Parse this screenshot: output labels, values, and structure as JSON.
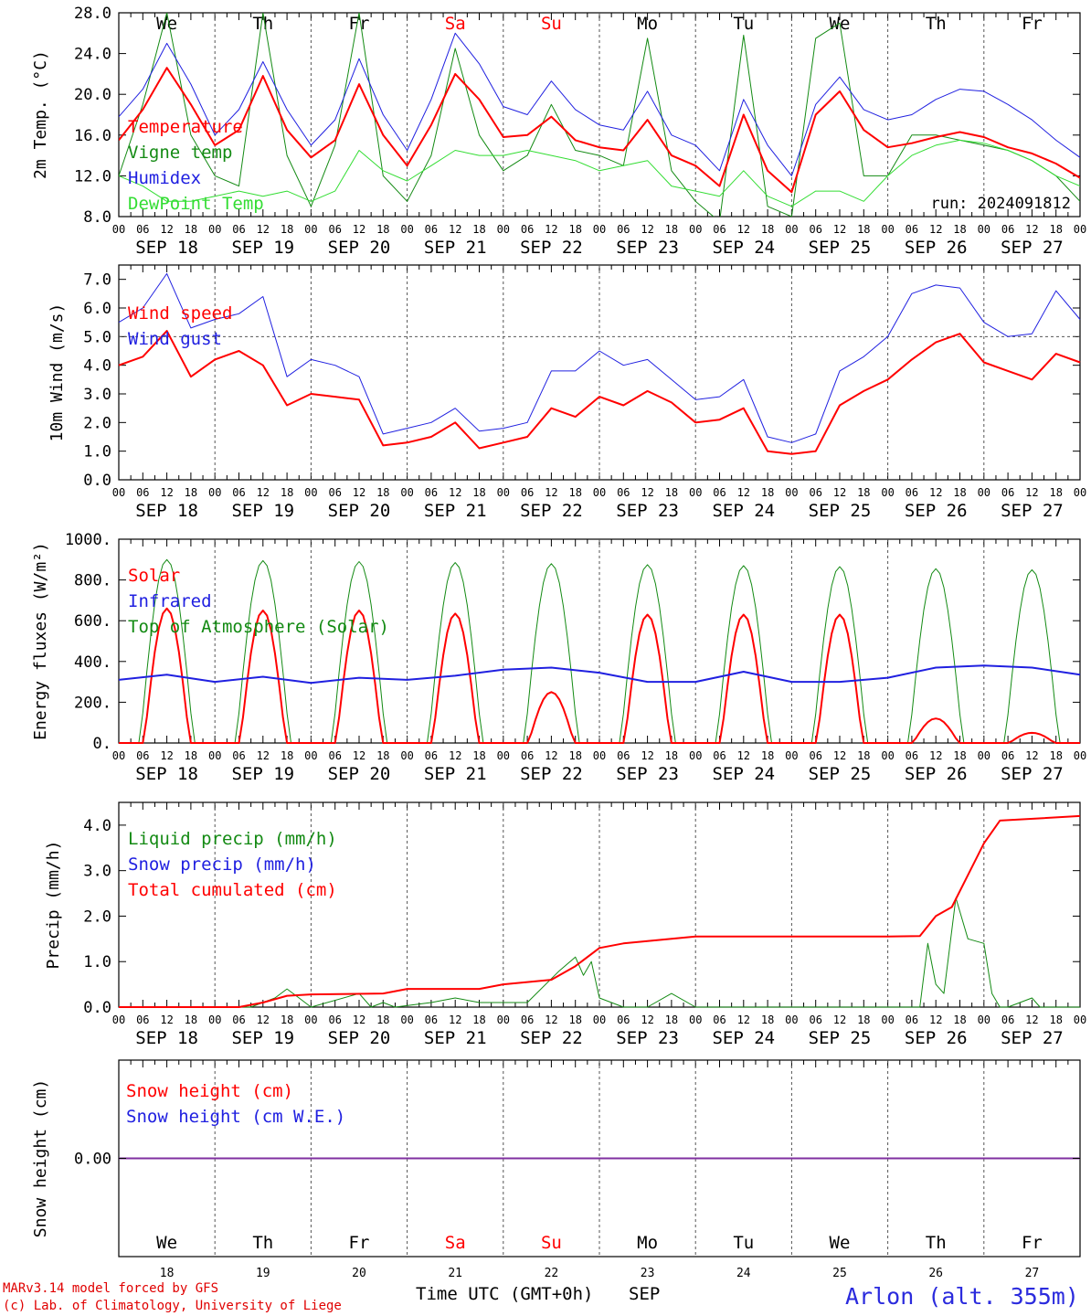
{
  "chart_data": [
    {
      "type": "line",
      "ylabel": "2m Temp. (°C)",
      "ylim": [
        8,
        28
      ],
      "yticks": [
        "8.0",
        "12.0",
        "16.0",
        "20.0",
        "24.0",
        "28.0"
      ],
      "annotation": "run: 2024091812",
      "x_hours": [
        0,
        6,
        12,
        18,
        24,
        30,
        36,
        42,
        48,
        54,
        60,
        66,
        72,
        78,
        84,
        90,
        96,
        102,
        108,
        114,
        120,
        126,
        132,
        138,
        144,
        150,
        156,
        162,
        168,
        174,
        180,
        186,
        192,
        198,
        204,
        210,
        216,
        222,
        228,
        234,
        240
      ],
      "series": [
        {
          "name": "Temperature",
          "color": "#ff0000",
          "width": 2,
          "values": [
            15.5,
            18.5,
            22.6,
            19.0,
            15.0,
            16.5,
            21.8,
            16.5,
            13.8,
            15.5,
            21.0,
            16.0,
            13.0,
            17.0,
            22.0,
            19.5,
            15.8,
            16.0,
            17.8,
            15.5,
            14.8,
            14.5,
            17.5,
            14.0,
            13.0,
            11.0,
            18.0,
            12.5,
            10.4,
            18.0,
            20.3,
            16.5,
            14.8,
            15.2,
            15.8,
            16.3,
            15.8,
            14.8,
            14.2,
            13.2,
            11.8
          ]
        },
        {
          "name": "Vigne temp",
          "color": "#138a13",
          "width": 1,
          "values": [
            12.0,
            19.0,
            28.0,
            16.0,
            12.0,
            11.0,
            28.0,
            14.0,
            9.0,
            15.0,
            28.0,
            12.0,
            9.5,
            14.0,
            24.5,
            16.0,
            12.5,
            14.0,
            19.0,
            14.5,
            14.0,
            13.0,
            25.5,
            12.5,
            9.5,
            7.5,
            25.8,
            9.0,
            8.0,
            25.5,
            27.0,
            12.0,
            12.0,
            16.0,
            16.0,
            15.5,
            15.0,
            14.5,
            13.5,
            12.0,
            9.5
          ]
        },
        {
          "name": "Humidex",
          "color": "#2020e0",
          "width": 1,
          "values": [
            17.8,
            20.5,
            25.0,
            21.0,
            16.0,
            18.5,
            23.2,
            18.5,
            15.0,
            17.5,
            23.5,
            18.0,
            14.5,
            19.5,
            26.0,
            23.0,
            18.8,
            18.0,
            21.3,
            18.5,
            17.0,
            16.5,
            20.3,
            16.0,
            15.0,
            12.5,
            19.5,
            15.0,
            12.0,
            19.0,
            21.7,
            18.5,
            17.5,
            18.0,
            19.5,
            20.5,
            20.3,
            19.0,
            17.5,
            15.5,
            13.8
          ]
        },
        {
          "name": "DewPoint Temp",
          "color": "#33dd33",
          "width": 1,
          "values": [
            12.0,
            11.0,
            9.5,
            9.5,
            10.0,
            10.5,
            10.0,
            10.5,
            9.5,
            10.5,
            14.5,
            12.5,
            11.5,
            13.0,
            14.5,
            14.0,
            14.0,
            14.5,
            14.0,
            13.5,
            12.5,
            13.0,
            13.5,
            11.0,
            10.5,
            10.0,
            12.5,
            10.0,
            9.0,
            10.5,
            10.5,
            9.5,
            12.0,
            14.0,
            15.0,
            15.5,
            15.2,
            14.5,
            13.5,
            12.0,
            11.0
          ]
        }
      ]
    },
    {
      "type": "line",
      "ylabel": "10m Wind (m/s)",
      "ylim": [
        0,
        7.5
      ],
      "yticks": [
        "0.0",
        "1.0",
        "2.0",
        "3.0",
        "4.0",
        "5.0",
        "6.0",
        "7.0"
      ],
      "reference_line": 5.0,
      "x_hours": [
        0,
        6,
        12,
        18,
        24,
        30,
        36,
        42,
        48,
        54,
        60,
        66,
        72,
        78,
        84,
        90,
        96,
        102,
        108,
        114,
        120,
        126,
        132,
        138,
        144,
        150,
        156,
        162,
        168,
        174,
        180,
        186,
        192,
        198,
        204,
        210,
        216,
        222,
        228,
        234,
        240
      ],
      "series": [
        {
          "name": "Wind speed",
          "color": "#ff0000",
          "width": 2,
          "values": [
            4.0,
            4.3,
            5.2,
            3.6,
            4.2,
            4.5,
            4.0,
            2.6,
            3.0,
            2.9,
            2.8,
            1.2,
            1.3,
            1.5,
            2.0,
            1.1,
            1.3,
            1.5,
            2.5,
            2.2,
            2.9,
            2.6,
            3.1,
            2.7,
            2.0,
            2.1,
            2.5,
            1.0,
            0.9,
            1.0,
            2.6,
            3.1,
            3.5,
            4.2,
            4.8,
            5.1,
            4.1,
            3.8,
            3.5,
            4.4,
            4.1
          ]
        },
        {
          "name": "Wind gust",
          "color": "#2020e0",
          "width": 1,
          "values": [
            5.5,
            6.0,
            7.2,
            5.3,
            5.6,
            5.8,
            6.4,
            3.6,
            4.2,
            4.0,
            3.6,
            1.6,
            1.8,
            2.0,
            2.5,
            1.7,
            1.8,
            2.0,
            3.8,
            3.8,
            4.5,
            4.0,
            4.2,
            3.5,
            2.8,
            2.9,
            3.5,
            1.5,
            1.3,
            1.6,
            3.8,
            4.3,
            5.0,
            6.5,
            6.8,
            6.7,
            5.5,
            5.0,
            5.1,
            6.6,
            5.6
          ]
        }
      ]
    },
    {
      "type": "line",
      "ylabel": "Energy fluxes (W/m²)",
      "ylim": [
        0,
        1000
      ],
      "yticks": [
        "0.",
        "200.",
        "400.",
        "600.",
        "800.",
        "1000."
      ],
      "series": [
        {
          "name": "Solar",
          "color": "#ff0000",
          "width": 2,
          "daily_peaks": [
            660,
            650,
            650,
            635,
            250,
            630,
            630,
            630,
            120,
            50
          ]
        },
        {
          "name": "Infrared",
          "color": "#2020e0",
          "width": 2,
          "x_hours": [
            0,
            12,
            24,
            36,
            48,
            60,
            72,
            84,
            96,
            108,
            120,
            132,
            144,
            156,
            168,
            180,
            192,
            204,
            216,
            228,
            240
          ],
          "values": [
            310,
            335,
            300,
            325,
            295,
            320,
            310,
            330,
            360,
            370,
            345,
            300,
            300,
            350,
            300,
            300,
            320,
            370,
            380,
            370,
            335
          ]
        },
        {
          "name": "Top of Atmosphere (Solar)",
          "color": "#138a13",
          "width": 1,
          "daily_peaks": [
            900,
            895,
            890,
            885,
            880,
            875,
            870,
            865,
            855,
            850
          ]
        }
      ]
    },
    {
      "type": "line",
      "ylabel": "Precip (mm/h)",
      "ylim": [
        0,
        4.5
      ],
      "yticks": [
        "0.0",
        "1.0",
        "2.0",
        "3.0",
        "4.0"
      ],
      "series": [
        {
          "name": "Liquid precip (mm/h)",
          "color": "#138a13",
          "width": 1,
          "x_hours": [
            0,
            33,
            39,
            42,
            45,
            48,
            60,
            63,
            66,
            69,
            78,
            84,
            90,
            102,
            110,
            114,
            116,
            118,
            120,
            126,
            132,
            138,
            144,
            200,
            202,
            204,
            206,
            209,
            212,
            216,
            218,
            220,
            222,
            228,
            230,
            240
          ],
          "values": [
            0,
            0,
            0.2,
            0.4,
            0.2,
            0,
            0.3,
            0,
            0.1,
            0,
            0.1,
            0.2,
            0.1,
            0.1,
            0.8,
            1.1,
            0.7,
            1.0,
            0.2,
            0,
            0,
            0.3,
            0,
            0,
            1.4,
            0.5,
            0.3,
            2.4,
            1.5,
            1.4,
            0.3,
            0,
            0,
            0.2,
            0,
            0
          ]
        },
        {
          "name": "Snow precip (mm/h)",
          "color": "#2020e0",
          "width": 1,
          "values": []
        },
        {
          "name": "Total cumulated (cm)",
          "color": "#ff0000",
          "width": 2,
          "x_hours": [
            0,
            30,
            36,
            42,
            48,
            66,
            72,
            90,
            96,
            108,
            114,
            120,
            126,
            132,
            138,
            144,
            192,
            200,
            204,
            208,
            212,
            216,
            220,
            240
          ],
          "values": [
            0,
            0,
            0.1,
            0.25,
            0.28,
            0.3,
            0.4,
            0.4,
            0.5,
            0.6,
            0.9,
            1.3,
            1.4,
            1.45,
            1.5,
            1.55,
            1.55,
            1.56,
            2.0,
            2.2,
            2.9,
            3.6,
            4.1,
            4.2
          ]
        }
      ]
    },
    {
      "type": "line",
      "ylabel": "Snow height (cm)",
      "yticks": [
        "0.00"
      ],
      "series": [
        {
          "name": "Snow height (cm)",
          "color": "#ff0000",
          "values": [
            0,
            0
          ]
        },
        {
          "name": "Snow height (cm W.E.)",
          "color": "#2020e0",
          "values": [
            0,
            0
          ]
        }
      ]
    }
  ],
  "days": {
    "weekdays": [
      "We",
      "Th",
      "Fr",
      "Sa",
      "Su",
      "Mo",
      "Tu",
      "We",
      "Th",
      "Fr"
    ],
    "weekend_color": "#ff0000",
    "weekend_flags": [
      false,
      false,
      false,
      true,
      true,
      false,
      false,
      false,
      false,
      false
    ],
    "dates": [
      "SEP 18",
      "SEP 19",
      "SEP 20",
      "SEP 21",
      "SEP 22",
      "SEP 23",
      "SEP 24",
      "SEP 25",
      "SEP 26",
      "SEP 27"
    ],
    "day_numbers": [
      "18",
      "19",
      "20",
      "21",
      "22",
      "23",
      "24",
      "25",
      "26",
      "27"
    ],
    "hour_labels": [
      "00",
      "06",
      "12",
      "18"
    ],
    "last_hour_label": "00"
  },
  "footer": {
    "credit_line1": "MARv3.14 model forced by GFS",
    "credit_line2": "(c) Lab. of Climatology, University of Liege",
    "x_title": "Time UTC (GMT+0h)",
    "month": "SEP",
    "location": "Arlon (alt. 355m)"
  },
  "colors": {
    "red": "#ff0000",
    "blue": "#2020e0",
    "dark_green": "#138a13",
    "light_green": "#33dd33",
    "snow_line": "#8030a0"
  }
}
